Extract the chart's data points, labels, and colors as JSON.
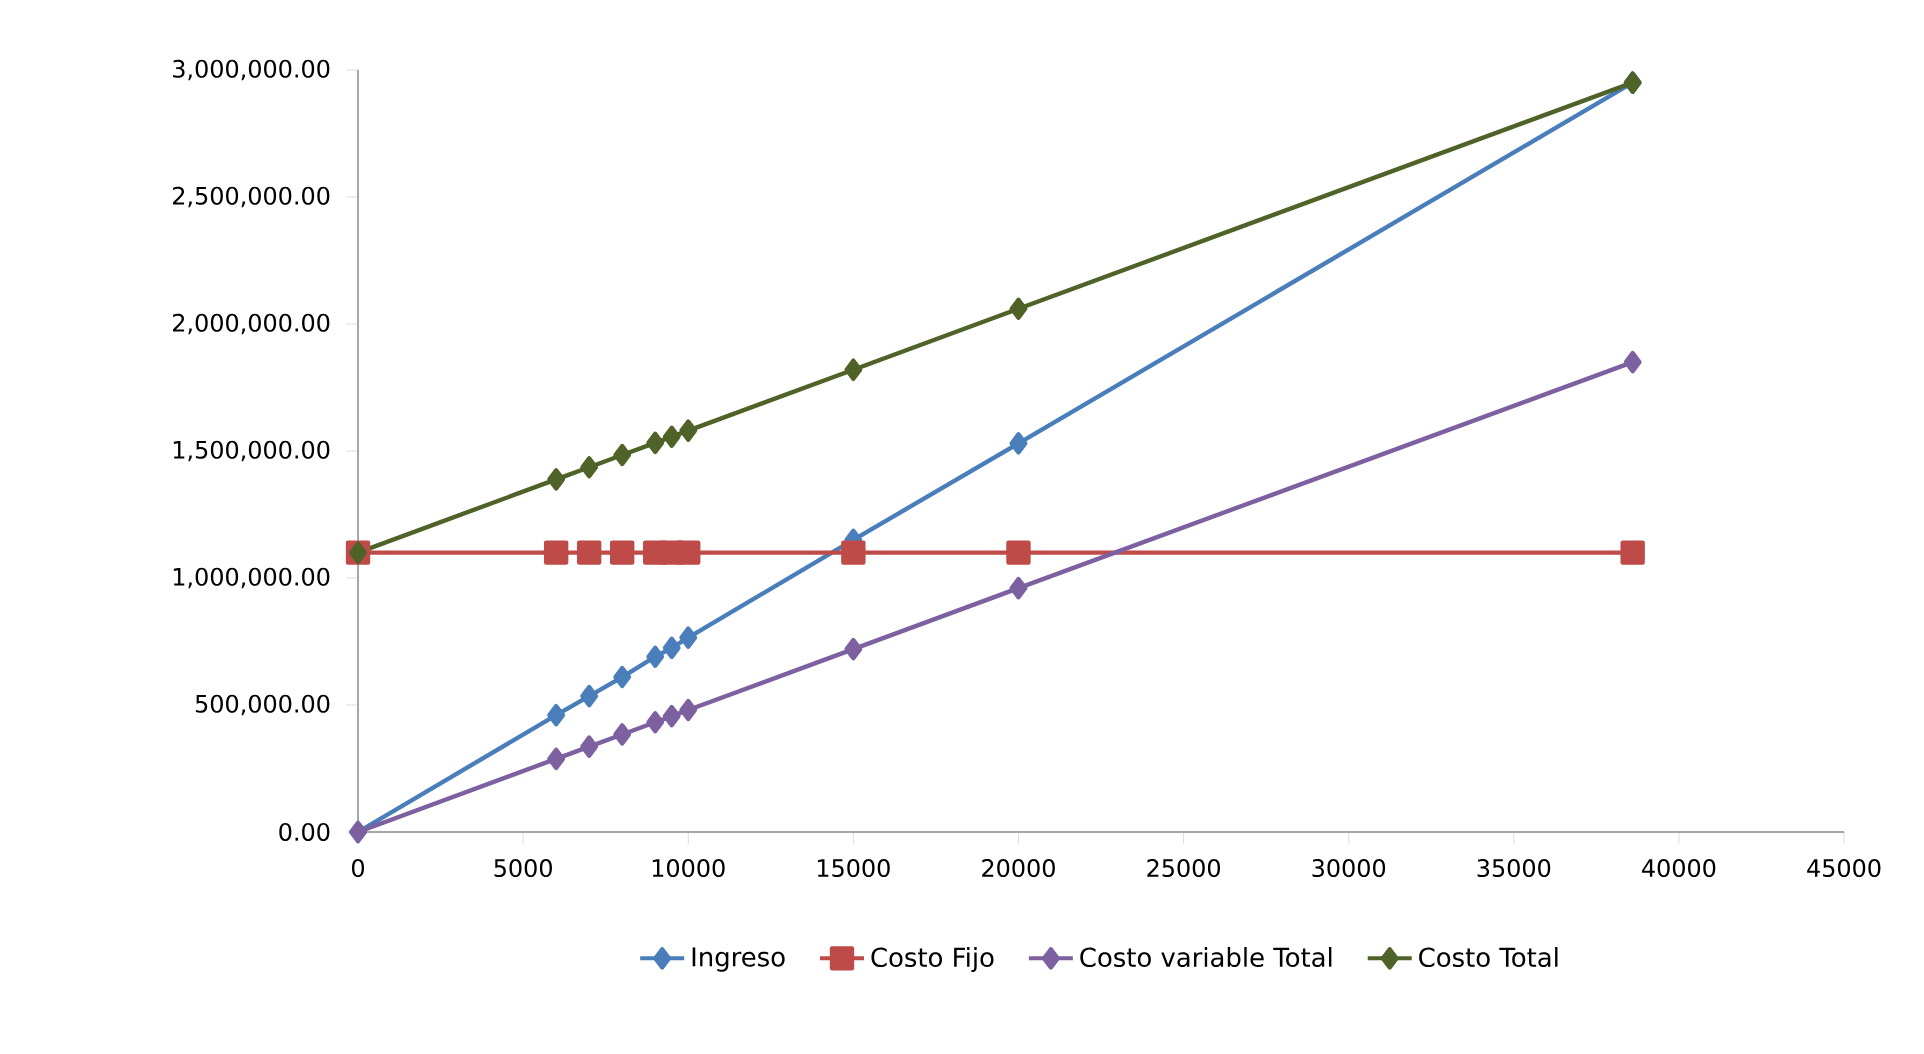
{
  "chart_data": {
    "type": "line",
    "x": [
      0,
      6000,
      7000,
      8000,
      9000,
      9500,
      10000,
      15000,
      20000,
      38600
    ],
    "series": [
      {
        "name": "Ingreso",
        "color": "#4a7ebb",
        "values": [
          0,
          460000,
          535000,
          610000,
          690000,
          725000,
          765000,
          1150000,
          1530000,
          2950000
        ]
      },
      {
        "name": "Costo Fijo",
        "color": "#be4b48",
        "marker": "square",
        "values": [
          1100000,
          1100000,
          1100000,
          1100000,
          1100000,
          1100000,
          1100000,
          1100000,
          1100000,
          1100000
        ]
      },
      {
        "name": "Costo variable Total",
        "color": "#7d60a0",
        "values": [
          0,
          288000,
          336000,
          384000,
          432000,
          456000,
          480000,
          720000,
          960000,
          1850000
        ]
      },
      {
        "name": "Costo Total",
        "color": "#4f6228",
        "values": [
          1100000,
          1388000,
          1436000,
          1484000,
          1532000,
          1556000,
          1580000,
          1820000,
          2060000,
          2950000
        ]
      }
    ],
    "xlim": [
      0,
      45000
    ],
    "xticks": [
      0,
      5000,
      10000,
      15000,
      20000,
      25000,
      30000,
      35000,
      40000,
      45000
    ],
    "ylim": [
      0,
      3000000
    ],
    "yticks": [
      {
        "value": 0,
        "label": "0.00"
      },
      {
        "value": 500000,
        "label": "500,000.00"
      },
      {
        "value": 1000000,
        "label": "1,000,000.00"
      },
      {
        "value": 1500000,
        "label": "1,500,000.00"
      },
      {
        "value": 2000000,
        "label": "2,000,000.00"
      },
      {
        "value": 2500000,
        "label": "2,500,000.00"
      },
      {
        "value": 3000000,
        "label": "3,000,000.00"
      }
    ],
    "marker": "diamond",
    "legend": "bottom",
    "grid": false
  }
}
